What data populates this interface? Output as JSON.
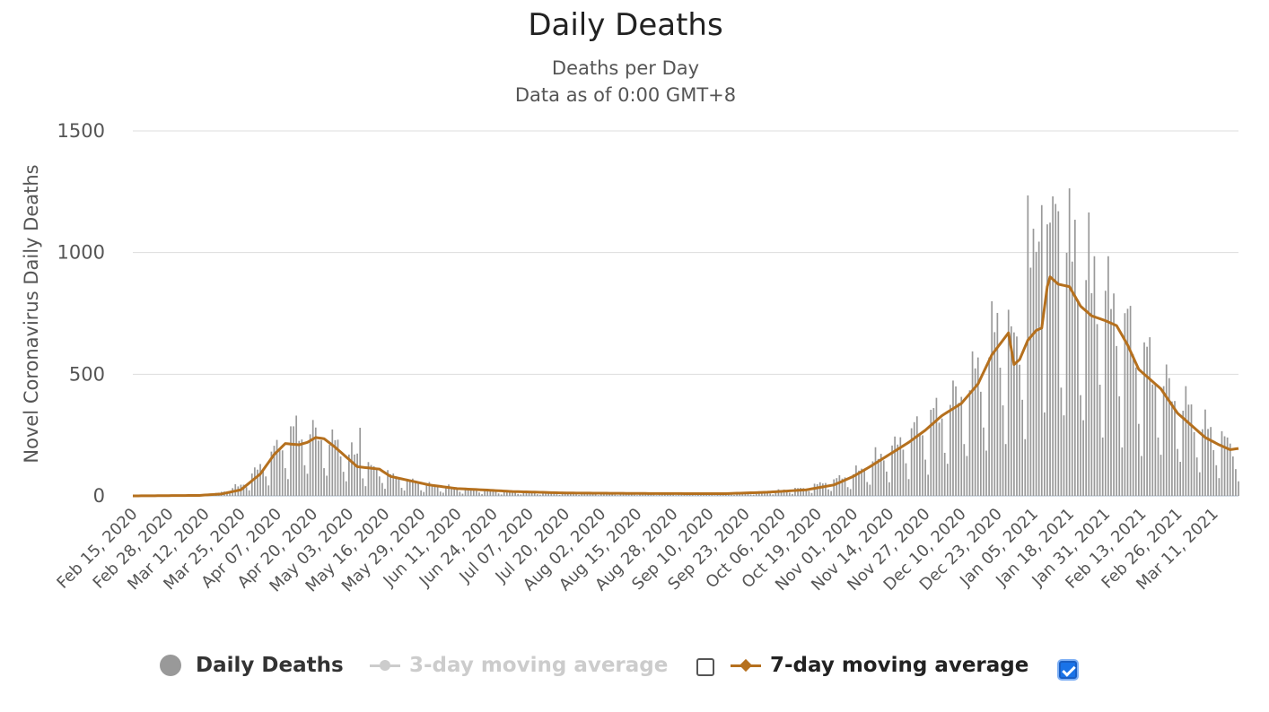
{
  "chart_data": {
    "type": "bar",
    "title": "Daily Deaths",
    "subtitle_lines": [
      "Deaths per Day",
      "Data as of 0:00 GMT+8"
    ],
    "ylabel": "Novel Coronavirus Daily Deaths",
    "xlabel": "",
    "ylim": [
      0,
      1500
    ],
    "yticks": [
      0,
      500,
      1000,
      1500
    ],
    "x_start": "Feb 15, 2020",
    "x_end": "Mar 20, 2021",
    "xticks": [
      "Feb 15, 2020",
      "Feb 28, 2020",
      "Mar 12, 2020",
      "Mar 25, 2020",
      "Apr 07, 2020",
      "Apr 20, 2020",
      "May 03, 2020",
      "May 16, 2020",
      "May 29, 2020",
      "Jun 11, 2020",
      "Jun 24, 2020",
      "Jul 07, 2020",
      "Jul 20, 2020",
      "Aug 02, 2020",
      "Aug 15, 2020",
      "Aug 28, 2020",
      "Sep 10, 2020",
      "Sep 23, 2020",
      "Oct 06, 2020",
      "Oct 19, 2020",
      "Nov 01, 2020",
      "Nov 14, 2020",
      "Nov 27, 2020",
      "Dec 10, 2020",
      "Dec 23, 2020",
      "Jan 05, 2021",
      "Jan 18, 2021",
      "Jan 31, 2021",
      "Feb 13, 2021",
      "Feb 26, 2021",
      "Mar 11, 2021"
    ],
    "grid": true,
    "legend_position": "bottom",
    "series": [
      {
        "name": "Daily Deaths",
        "type": "bar",
        "color": "#999999",
        "visible": true,
        "note": "daily values are estimated piecewise: [date, approximate level] anchors with weekly reporting dips",
        "anchors": [
          [
            "Feb 15, 2020",
            0
          ],
          [
            "Mar 10, 2020",
            0
          ],
          [
            "Mar 15, 2020",
            5
          ],
          [
            "Mar 25, 2020",
            40
          ],
          [
            "Apr 03, 2020",
            130
          ],
          [
            "Apr 12, 2020",
            230
          ],
          [
            "Apr 20, 2020",
            240
          ],
          [
            "May 01, 2020",
            180
          ],
          [
            "May 10, 2020",
            110
          ],
          [
            "May 20, 2020",
            70
          ],
          [
            "Jun 01, 2020",
            40
          ],
          [
            "Jun 15, 2020",
            25
          ],
          [
            "Jul 01, 2020",
            15
          ],
          [
            "Aug 01, 2020",
            10
          ],
          [
            "Sep 15, 2020",
            8
          ],
          [
            "Oct 01, 2020",
            15
          ],
          [
            "Oct 15, 2020",
            30
          ],
          [
            "Nov 01, 2020",
            80
          ],
          [
            "Nov 15, 2020",
            180
          ],
          [
            "Dec 01, 2020",
            300
          ],
          [
            "Dec 15, 2020",
            450
          ],
          [
            "Dec 25, 2020",
            650
          ],
          [
            "Dec 29, 2020",
            560
          ],
          [
            "Jan 02, 2021",
            700
          ],
          [
            "Jan 07, 2021",
            1000
          ],
          [
            "Jan 15, 2021",
            920
          ],
          [
            "Jan 25, 2021",
            800
          ],
          [
            "Feb 03, 2021",
            700
          ],
          [
            "Feb 13, 2021",
            520
          ],
          [
            "Feb 25, 2021",
            380
          ],
          [
            "Mar 10, 2021",
            230
          ],
          [
            "Mar 20, 2021",
            180
          ]
        ],
        "peak_values": [
          [
            "Jan 03, 2021",
            1235
          ],
          [
            "Jan 08, 2021",
            1195
          ],
          [
            "Jan 13, 2021",
            1200
          ],
          [
            "Jan 14, 2021",
            1170
          ],
          [
            "Jan 20, 2021",
            1135
          ],
          [
            "Jan 27, 2021",
            985
          ],
          [
            "Feb 01, 2021",
            985
          ],
          [
            "Apr 14, 2020",
            330
          ],
          [
            "May 07, 2020",
            280
          ]
        ]
      },
      {
        "name": "3-day moving average",
        "type": "line",
        "color": "#cccccc",
        "visible": false
      },
      {
        "name": "7-day moving average",
        "type": "line",
        "color": "#b5701e",
        "visible": true,
        "points": [
          [
            "Feb 15, 2020",
            0
          ],
          [
            "Mar 10, 2020",
            2
          ],
          [
            "Mar 18, 2020",
            8
          ],
          [
            "Mar 25, 2020",
            25
          ],
          [
            "Apr 01, 2020",
            90
          ],
          [
            "Apr 06, 2020",
            170
          ],
          [
            "Apr 10, 2020",
            215
          ],
          [
            "Apr 15, 2020",
            210
          ],
          [
            "Apr 18, 2020",
            220
          ],
          [
            "Apr 21, 2020",
            240
          ],
          [
            "Apr 24, 2020",
            235
          ],
          [
            "Apr 28, 2020",
            200
          ],
          [
            "May 02, 2020",
            160
          ],
          [
            "May 06, 2020",
            120
          ],
          [
            "May 10, 2020",
            115
          ],
          [
            "May 14, 2020",
            110
          ],
          [
            "May 18, 2020",
            80
          ],
          [
            "May 24, 2020",
            65
          ],
          [
            "Jun 01, 2020",
            45
          ],
          [
            "Jun 11, 2020",
            30
          ],
          [
            "Jun 20, 2020",
            25
          ],
          [
            "Jul 01, 2020",
            18
          ],
          [
            "Jul 20, 2020",
            12
          ],
          [
            "Aug 15, 2020",
            10
          ],
          [
            "Sep 15, 2020",
            9
          ],
          [
            "Oct 01, 2020",
            15
          ],
          [
            "Oct 15, 2020",
            25
          ],
          [
            "Oct 25, 2020",
            45
          ],
          [
            "Nov 01, 2020",
            80
          ],
          [
            "Nov 07, 2020",
            120
          ],
          [
            "Nov 14, 2020",
            170
          ],
          [
            "Nov 21, 2020",
            220
          ],
          [
            "Nov 27, 2020",
            270
          ],
          [
            "Dec 03, 2020",
            330
          ],
          [
            "Dec 10, 2020",
            380
          ],
          [
            "Dec 16, 2020",
            460
          ],
          [
            "Dec 21, 2020",
            580
          ],
          [
            "Dec 25, 2020",
            640
          ],
          [
            "Dec 27, 2020",
            670
          ],
          [
            "Dec 29, 2020",
            540
          ],
          [
            "Dec 31, 2020",
            560
          ],
          [
            "Jan 03, 2021",
            640
          ],
          [
            "Jan 06, 2021",
            680
          ],
          [
            "Jan 08, 2021",
            690
          ],
          [
            "Jan 10, 2021",
            860
          ],
          [
            "Jan 11, 2021",
            900
          ],
          [
            "Jan 14, 2021",
            870
          ],
          [
            "Jan 18, 2021",
            860
          ],
          [
            "Jan 22, 2021",
            780
          ],
          [
            "Jan 26, 2021",
            740
          ],
          [
            "Jan 31, 2021",
            720
          ],
          [
            "Feb 04, 2021",
            700
          ],
          [
            "Feb 08, 2021",
            620
          ],
          [
            "Feb 12, 2021",
            520
          ],
          [
            "Feb 16, 2021",
            480
          ],
          [
            "Feb 20, 2021",
            440
          ],
          [
            "Feb 26, 2021",
            340
          ],
          [
            "Mar 03, 2021",
            290
          ],
          [
            "Mar 08, 2021",
            240
          ],
          [
            "Mar 13, 2021",
            210
          ],
          [
            "Mar 17, 2021",
            190
          ],
          [
            "Mar 20, 2021",
            195
          ]
        ]
      }
    ]
  },
  "legend": {
    "items": [
      {
        "label": "Daily Deaths",
        "color": "#999999",
        "active": true
      },
      {
        "label": "3-day moving average",
        "color": "#cccccc",
        "active": false
      },
      {
        "label": "7-day moving average",
        "color": "#b5701e",
        "active": true
      }
    ],
    "checkbox_3day": false,
    "checkbox_7day": true
  }
}
